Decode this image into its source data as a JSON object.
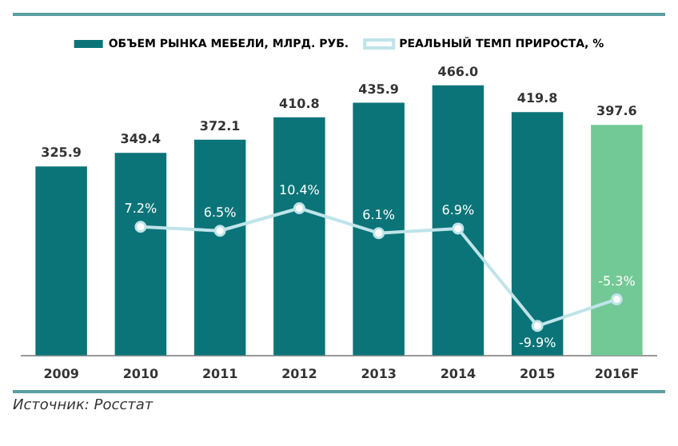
{
  "chart_data": {
    "type": "bar",
    "categories": [
      "2009",
      "2010",
      "2011",
      "2012",
      "2013",
      "2014",
      "2015",
      "2016F"
    ],
    "series": [
      {
        "name": "ОБЪЕМ РЫНКА МЕБЕЛИ, МЛРД. РУБ.",
        "value_labels": [
          "325.9",
          "349.4",
          "372.1",
          "410.8",
          "435.9",
          "466.0",
          "419.8",
          "397.6"
        ],
        "color": "#0b7478",
        "colors": [
          "#0b7478",
          "#0b7478",
          "#0b7478",
          "#0b7478",
          "#0b7478",
          "#0b7478",
          "#0b7478",
          "#72c995"
        ],
        "values": [
          325.9,
          349.4,
          372.1,
          410.8,
          435.9,
          466.0,
          419.8,
          397.6
        ]
      },
      {
        "name": "РЕАЛЬНЫЙ ТЕМП ПРИРОСТА, %",
        "type": "line",
        "axis": "y2",
        "color": "#bfe4ea",
        "value_labels": [
          null,
          "7.2%",
          "6.5%",
          "10.4%",
          "6.1%",
          "6.9%",
          "-9.9%",
          "-5.3%"
        ],
        "values": [
          null,
          7.2,
          6.5,
          10.4,
          6.1,
          6.9,
          -9.9,
          -5.3
        ]
      }
    ],
    "legend": "top",
    "marker": "circle",
    "grid": false,
    "tick_labels": "x",
    "annotations": [
      "Источник: Росстат"
    ]
  }
}
